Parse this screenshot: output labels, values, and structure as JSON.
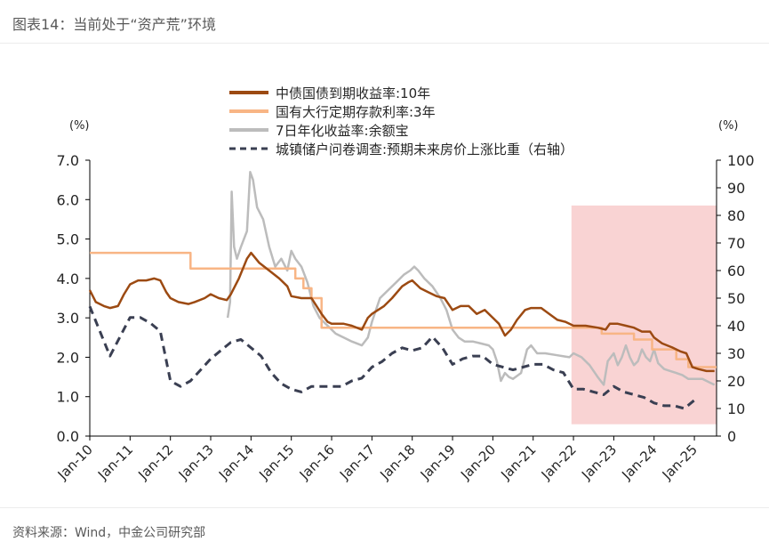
{
  "figure": {
    "caption": "图表14：当前处于“资产荒”环境",
    "source": "资料来源：Wind，中金公司研究部"
  },
  "chart_data": {
    "type": "line",
    "x_ticks": [
      "Jan-10",
      "Jan-11",
      "Jan-12",
      "Jan-13",
      "Jan-14",
      "Jan-15",
      "Jan-16",
      "Jan-17",
      "Jan-18",
      "Jan-19",
      "Jan-20",
      "Jan-21",
      "Jan-22",
      "Jan-23",
      "Jan-24",
      "Jan-25"
    ],
    "x_range": [
      2010.0,
      2025.55
    ],
    "y_left": {
      "unit": "(%)",
      "range": [
        0,
        7
      ],
      "ticks": [
        "0.0",
        "1.0",
        "2.0",
        "3.0",
        "4.0",
        "5.0",
        "6.0",
        "7.0"
      ]
    },
    "y_right": {
      "unit": "(%)",
      "range": [
        0,
        100
      ],
      "ticks": [
        "0",
        "10",
        "20",
        "30",
        "40",
        "50",
        "60",
        "70",
        "80",
        "90",
        "100"
      ]
    },
    "shaded_region": {
      "x_start": 2021.95,
      "x_end": 2025.55,
      "y_left_start": 0.3,
      "y_left_end": 5.85,
      "color": "#f9d3d3"
    },
    "legend_position": "top",
    "series": [
      {
        "name": "中债国债到期收益率:10年",
        "axis": "left",
        "color": "#9c4a12",
        "style": "solid",
        "points": [
          [
            2010.0,
            3.7
          ],
          [
            2010.15,
            3.4
          ],
          [
            2010.35,
            3.3
          ],
          [
            2010.5,
            3.25
          ],
          [
            2010.7,
            3.3
          ],
          [
            2010.85,
            3.6
          ],
          [
            2011.0,
            3.85
          ],
          [
            2011.2,
            3.95
          ],
          [
            2011.4,
            3.95
          ],
          [
            2011.6,
            4.0
          ],
          [
            2011.75,
            3.95
          ],
          [
            2011.9,
            3.65
          ],
          [
            2012.0,
            3.5
          ],
          [
            2012.2,
            3.4
          ],
          [
            2012.45,
            3.35
          ],
          [
            2012.6,
            3.4
          ],
          [
            2012.85,
            3.5
          ],
          [
            2013.0,
            3.6
          ],
          [
            2013.2,
            3.5
          ],
          [
            2013.4,
            3.45
          ],
          [
            2013.5,
            3.6
          ],
          [
            2013.7,
            4.0
          ],
          [
            2013.9,
            4.5
          ],
          [
            2014.0,
            4.65
          ],
          [
            2014.2,
            4.4
          ],
          [
            2014.45,
            4.2
          ],
          [
            2014.7,
            4.0
          ],
          [
            2014.9,
            3.8
          ],
          [
            2015.0,
            3.55
          ],
          [
            2015.25,
            3.5
          ],
          [
            2015.5,
            3.5
          ],
          [
            2015.75,
            3.1
          ],
          [
            2015.9,
            2.9
          ],
          [
            2016.0,
            2.85
          ],
          [
            2016.3,
            2.85
          ],
          [
            2016.5,
            2.8
          ],
          [
            2016.75,
            2.7
          ],
          [
            2016.9,
            3.0
          ],
          [
            2017.0,
            3.1
          ],
          [
            2017.3,
            3.3
          ],
          [
            2017.5,
            3.5
          ],
          [
            2017.75,
            3.8
          ],
          [
            2017.9,
            3.9
          ],
          [
            2018.0,
            3.95
          ],
          [
            2018.2,
            3.75
          ],
          [
            2018.4,
            3.65
          ],
          [
            2018.6,
            3.55
          ],
          [
            2018.8,
            3.5
          ],
          [
            2019.0,
            3.2
          ],
          [
            2019.2,
            3.3
          ],
          [
            2019.4,
            3.3
          ],
          [
            2019.6,
            3.1
          ],
          [
            2019.8,
            3.2
          ],
          [
            2020.0,
            3.0
          ],
          [
            2020.15,
            2.85
          ],
          [
            2020.3,
            2.55
          ],
          [
            2020.45,
            2.7
          ],
          [
            2020.6,
            2.95
          ],
          [
            2020.8,
            3.2
          ],
          [
            2020.95,
            3.25
          ],
          [
            2021.2,
            3.25
          ],
          [
            2021.4,
            3.1
          ],
          [
            2021.6,
            2.95
          ],
          [
            2021.8,
            2.9
          ],
          [
            2022.0,
            2.8
          ],
          [
            2022.3,
            2.8
          ],
          [
            2022.6,
            2.75
          ],
          [
            2022.8,
            2.7
          ],
          [
            2022.9,
            2.85
          ],
          [
            2023.1,
            2.85
          ],
          [
            2023.3,
            2.8
          ],
          [
            2023.5,
            2.75
          ],
          [
            2023.7,
            2.65
          ],
          [
            2023.9,
            2.65
          ],
          [
            2024.0,
            2.5
          ],
          [
            2024.2,
            2.35
          ],
          [
            2024.45,
            2.25
          ],
          [
            2024.65,
            2.15
          ],
          [
            2024.8,
            2.1
          ],
          [
            2024.95,
            1.75
          ],
          [
            2025.1,
            1.7
          ],
          [
            2025.3,
            1.65
          ],
          [
            2025.5,
            1.65
          ]
        ]
      },
      {
        "name": "国有大行定期存款利率:3年",
        "axis": "left",
        "color": "#f8b585",
        "style": "step",
        "points": [
          [
            2010.0,
            4.65
          ],
          [
            2012.5,
            4.65
          ],
          [
            2012.5,
            4.25
          ],
          [
            2015.1,
            4.25
          ],
          [
            2015.1,
            4.0
          ],
          [
            2015.3,
            4.0
          ],
          [
            2015.3,
            3.75
          ],
          [
            2015.5,
            3.75
          ],
          [
            2015.5,
            3.5
          ],
          [
            2015.75,
            3.5
          ],
          [
            2015.75,
            2.75
          ],
          [
            2022.7,
            2.75
          ],
          [
            2022.7,
            2.6
          ],
          [
            2023.5,
            2.6
          ],
          [
            2023.5,
            2.45
          ],
          [
            2023.95,
            2.45
          ],
          [
            2023.95,
            2.2
          ],
          [
            2024.55,
            2.2
          ],
          [
            2024.55,
            1.95
          ],
          [
            2024.85,
            1.95
          ],
          [
            2024.85,
            1.75
          ],
          [
            2025.55,
            1.75
          ]
        ]
      },
      {
        "name": "7日年化收益率:余额宝",
        "axis": "left",
        "color": "#bcbcbc",
        "style": "solid",
        "points": [
          [
            2013.42,
            3.0
          ],
          [
            2013.48,
            3.4
          ],
          [
            2013.52,
            6.2
          ],
          [
            2013.58,
            4.8
          ],
          [
            2013.65,
            4.5
          ],
          [
            2013.75,
            4.8
          ],
          [
            2013.9,
            5.2
          ],
          [
            2013.98,
            6.7
          ],
          [
            2014.05,
            6.5
          ],
          [
            2014.15,
            5.8
          ],
          [
            2014.3,
            5.5
          ],
          [
            2014.45,
            4.8
          ],
          [
            2014.6,
            4.3
          ],
          [
            2014.75,
            4.5
          ],
          [
            2014.9,
            4.2
          ],
          [
            2015.0,
            4.7
          ],
          [
            2015.1,
            4.5
          ],
          [
            2015.25,
            4.3
          ],
          [
            2015.4,
            3.9
          ],
          [
            2015.55,
            3.3
          ],
          [
            2015.7,
            3.0
          ],
          [
            2015.9,
            2.8
          ],
          [
            2016.1,
            2.6
          ],
          [
            2016.3,
            2.5
          ],
          [
            2016.5,
            2.4
          ],
          [
            2016.75,
            2.3
          ],
          [
            2016.9,
            2.5
          ],
          [
            2017.0,
            2.9
          ],
          [
            2017.2,
            3.5
          ],
          [
            2017.4,
            3.7
          ],
          [
            2017.6,
            3.9
          ],
          [
            2017.8,
            4.1
          ],
          [
            2017.95,
            4.2
          ],
          [
            2018.05,
            4.3
          ],
          [
            2018.15,
            4.2
          ],
          [
            2018.3,
            4.0
          ],
          [
            2018.5,
            3.8
          ],
          [
            2018.7,
            3.5
          ],
          [
            2018.85,
            3.2
          ],
          [
            2019.0,
            2.7
          ],
          [
            2019.15,
            2.5
          ],
          [
            2019.3,
            2.4
          ],
          [
            2019.5,
            2.4
          ],
          [
            2019.7,
            2.35
          ],
          [
            2019.9,
            2.3
          ],
          [
            2020.0,
            2.2
          ],
          [
            2020.1,
            1.9
          ],
          [
            2020.2,
            1.4
          ],
          [
            2020.3,
            1.6
          ],
          [
            2020.4,
            1.5
          ],
          [
            2020.5,
            1.45
          ],
          [
            2020.7,
            1.6
          ],
          [
            2020.85,
            2.2
          ],
          [
            2020.95,
            2.3
          ],
          [
            2021.1,
            2.1
          ],
          [
            2021.3,
            2.1
          ],
          [
            2021.6,
            2.05
          ],
          [
            2021.9,
            2.0
          ],
          [
            2022.0,
            2.1
          ],
          [
            2022.2,
            2.0
          ],
          [
            2022.4,
            1.8
          ],
          [
            2022.6,
            1.5
          ],
          [
            2022.75,
            1.3
          ],
          [
            2022.85,
            1.9
          ],
          [
            2023.0,
            2.1
          ],
          [
            2023.1,
            1.8
          ],
          [
            2023.2,
            2.0
          ],
          [
            2023.3,
            2.3
          ],
          [
            2023.4,
            2.0
          ],
          [
            2023.5,
            1.8
          ],
          [
            2023.6,
            1.9
          ],
          [
            2023.7,
            2.2
          ],
          [
            2023.8,
            2.0
          ],
          [
            2023.9,
            1.9
          ],
          [
            2024.0,
            2.2
          ],
          [
            2024.1,
            1.85
          ],
          [
            2024.25,
            1.7
          ],
          [
            2024.4,
            1.65
          ],
          [
            2024.55,
            1.6
          ],
          [
            2024.7,
            1.55
          ],
          [
            2024.85,
            1.45
          ],
          [
            2025.0,
            1.45
          ],
          [
            2025.2,
            1.45
          ],
          [
            2025.4,
            1.35
          ],
          [
            2025.5,
            1.3
          ]
        ]
      },
      {
        "name": "城镇储户问卷调查:预期未来房价上涨比重（右轴）",
        "axis": "right",
        "color": "#3a3f52",
        "style": "dashed",
        "points": [
          [
            2010.0,
            47
          ],
          [
            2010.5,
            29
          ],
          [
            2011.0,
            43
          ],
          [
            2011.25,
            43
          ],
          [
            2011.5,
            41
          ],
          [
            2011.75,
            38
          ],
          [
            2012.0,
            20
          ],
          [
            2012.25,
            18
          ],
          [
            2012.5,
            20
          ],
          [
            2012.75,
            24
          ],
          [
            2013.0,
            28
          ],
          [
            2013.25,
            31
          ],
          [
            2013.5,
            34
          ],
          [
            2013.75,
            35
          ],
          [
            2014.0,
            32
          ],
          [
            2014.25,
            29
          ],
          [
            2014.5,
            23
          ],
          [
            2014.75,
            19
          ],
          [
            2015.0,
            17
          ],
          [
            2015.25,
            16
          ],
          [
            2015.5,
            18
          ],
          [
            2015.75,
            18
          ],
          [
            2016.0,
            18
          ],
          [
            2016.25,
            18
          ],
          [
            2016.5,
            20
          ],
          [
            2016.75,
            21
          ],
          [
            2017.0,
            25
          ],
          [
            2017.25,
            27
          ],
          [
            2017.5,
            30
          ],
          [
            2017.75,
            32
          ],
          [
            2018.0,
            31
          ],
          [
            2018.25,
            32
          ],
          [
            2018.5,
            36
          ],
          [
            2018.75,
            32
          ],
          [
            2019.0,
            26
          ],
          [
            2019.25,
            28
          ],
          [
            2019.5,
            29
          ],
          [
            2019.75,
            29
          ],
          [
            2020.0,
            26
          ],
          [
            2020.25,
            25
          ],
          [
            2020.5,
            24
          ],
          [
            2020.75,
            25
          ],
          [
            2021.0,
            26
          ],
          [
            2021.25,
            26
          ],
          [
            2021.5,
            24
          ],
          [
            2021.75,
            23
          ],
          [
            2022.0,
            17
          ],
          [
            2022.25,
            17
          ],
          [
            2022.5,
            16
          ],
          [
            2022.75,
            15
          ],
          [
            2023.0,
            18
          ],
          [
            2023.25,
            16
          ],
          [
            2023.5,
            15
          ],
          [
            2023.75,
            14
          ],
          [
            2024.0,
            12
          ],
          [
            2024.25,
            11
          ],
          [
            2024.5,
            11
          ],
          [
            2024.75,
            10
          ],
          [
            2025.0,
            13
          ]
        ]
      }
    ]
  }
}
